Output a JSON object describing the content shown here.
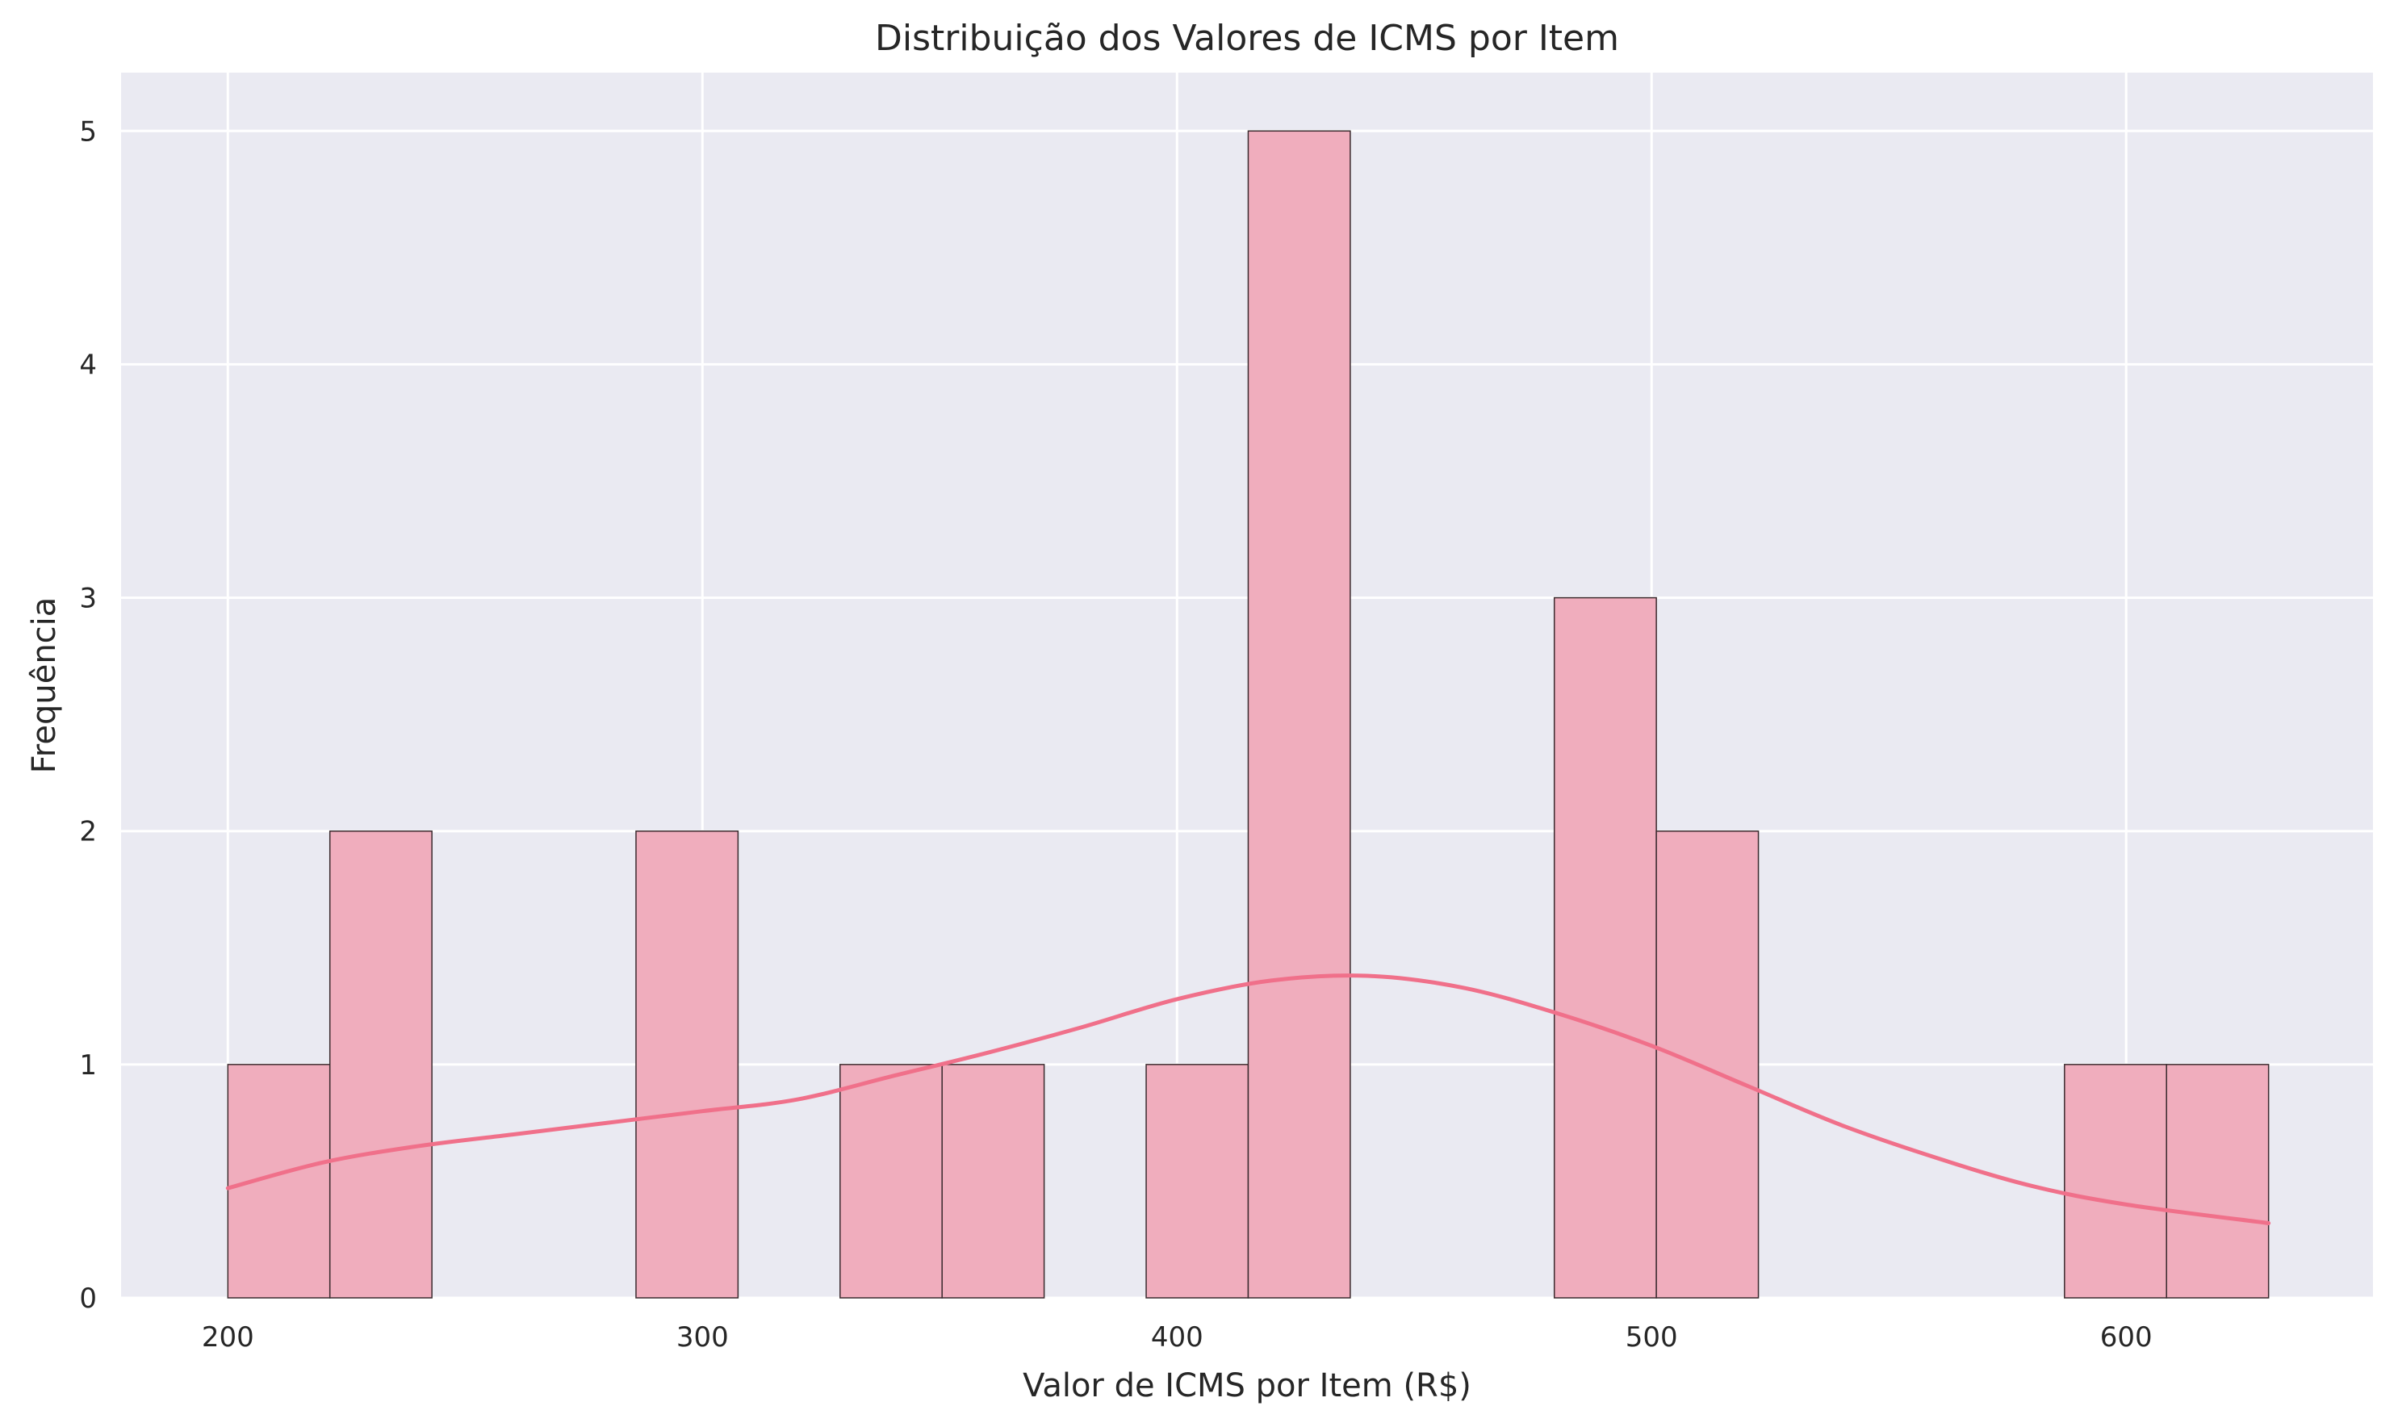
{
  "chart_data": {
    "type": "bar",
    "title": "Distribuição dos Valores de ICMS por Item",
    "xlabel": "Valor de ICMS por Item (R$)",
    "ylabel": "Frequência",
    "xlim": [
      177.5,
      652
    ],
    "ylim": [
      0,
      5.25
    ],
    "xticks": [
      200,
      300,
      400,
      500,
      600
    ],
    "yticks": [
      0,
      1,
      2,
      3,
      4,
      5
    ],
    "grid": true,
    "bin_width": 21.5,
    "bins": [
      {
        "start": 200,
        "end": 221.5,
        "count": 1
      },
      {
        "start": 221.5,
        "end": 243,
        "count": 2
      },
      {
        "start": 243,
        "end": 264.5,
        "count": 0
      },
      {
        "start": 264.5,
        "end": 286,
        "count": 0
      },
      {
        "start": 286,
        "end": 307.5,
        "count": 2
      },
      {
        "start": 307.5,
        "end": 329,
        "count": 0
      },
      {
        "start": 329,
        "end": 350.5,
        "count": 1
      },
      {
        "start": 350.5,
        "end": 372,
        "count": 1
      },
      {
        "start": 372,
        "end": 393.5,
        "count": 0
      },
      {
        "start": 393.5,
        "end": 415,
        "count": 1
      },
      {
        "start": 415,
        "end": 436.5,
        "count": 5
      },
      {
        "start": 436.5,
        "end": 458,
        "count": 0
      },
      {
        "start": 458,
        "end": 479.5,
        "count": 0
      },
      {
        "start": 479.5,
        "end": 501,
        "count": 3
      },
      {
        "start": 501,
        "end": 522.5,
        "count": 2
      },
      {
        "start": 522.5,
        "end": 544,
        "count": 0
      },
      {
        "start": 544,
        "end": 565.5,
        "count": 0
      },
      {
        "start": 565.5,
        "end": 587,
        "count": 0
      },
      {
        "start": 587,
        "end": 608.5,
        "count": 1
      },
      {
        "start": 608.5,
        "end": 630,
        "count": 1
      }
    ],
    "kde": {
      "x": [
        200,
        220,
        240,
        260,
        280,
        300,
        320,
        340,
        360,
        380,
        400,
        420,
        440,
        460,
        480,
        500,
        520,
        540,
        560,
        580,
        600,
        630
      ],
      "y": [
        0.47,
        0.58,
        0.65,
        0.7,
        0.75,
        0.8,
        0.85,
        0.95,
        1.05,
        1.16,
        1.28,
        1.36,
        1.38,
        1.33,
        1.22,
        1.08,
        0.91,
        0.74,
        0.6,
        0.48,
        0.4,
        0.32
      ]
    },
    "colors": {
      "background": "#EAEAF2",
      "grid": "#FFFFFF",
      "bar_fill": "#F0ADBD",
      "bar_edge": "#3a2a2e",
      "kde_line": "#F0708A"
    }
  }
}
